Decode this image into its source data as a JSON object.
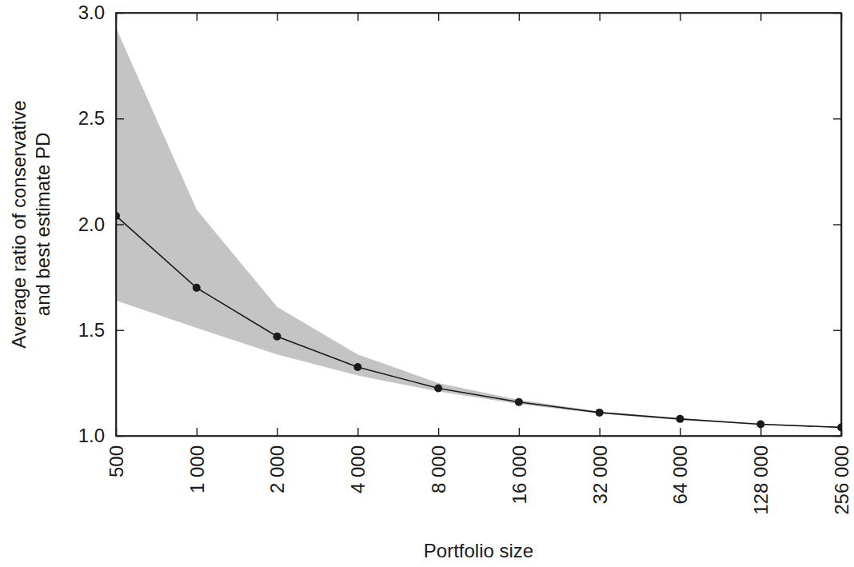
{
  "chart_data": {
    "type": "line",
    "x_label": "Portfolio size",
    "y_label": [
      "Average ratio of conservative",
      "and best estimate PD"
    ],
    "x": [
      500,
      1000,
      2000,
      4000,
      8000,
      16000,
      32000,
      64000,
      128000,
      256000
    ],
    "values": [
      2.04,
      1.7,
      1.47,
      1.325,
      1.225,
      1.16,
      1.11,
      1.08,
      1.055,
      1.04
    ],
    "band_lower": [
      1.64,
      1.51,
      1.385,
      1.285,
      1.21,
      1.15,
      1.105,
      1.075,
      1.052,
      1.038
    ],
    "band_upper": [
      2.93,
      2.07,
      1.61,
      1.385,
      1.25,
      1.17,
      1.115,
      1.083,
      1.057,
      1.042
    ],
    "color": "#1a1a1a",
    "marker": "circle",
    "log": "x",
    "xlim": [
      500,
      256000
    ],
    "ylim": [
      1.0,
      3.0
    ],
    "xticks": [
      500,
      {
        "value": 1000,
        "label": "1 000"
      },
      {
        "value": 2000,
        "label": "2 000"
      },
      {
        "value": 4000,
        "label": "4 000"
      },
      {
        "value": 8000,
        "label": "8 000"
      },
      {
        "value": 16000,
        "label": "16 000"
      },
      {
        "value": 32000,
        "label": "32 000"
      },
      {
        "value": 64000,
        "label": "64 000"
      },
      {
        "value": 128000,
        "label": "128 000"
      },
      {
        "value": 256000,
        "label": "256 000"
      }
    ],
    "yticks": [
      {
        "value": 1.0,
        "label": "1.0"
      },
      {
        "value": 1.5,
        "label": "1.5"
      },
      {
        "value": 2.0,
        "label": "2.0"
      },
      {
        "value": 2.5,
        "label": "2.5"
      },
      {
        "value": 3.0,
        "label": "3.0"
      }
    ]
  }
}
